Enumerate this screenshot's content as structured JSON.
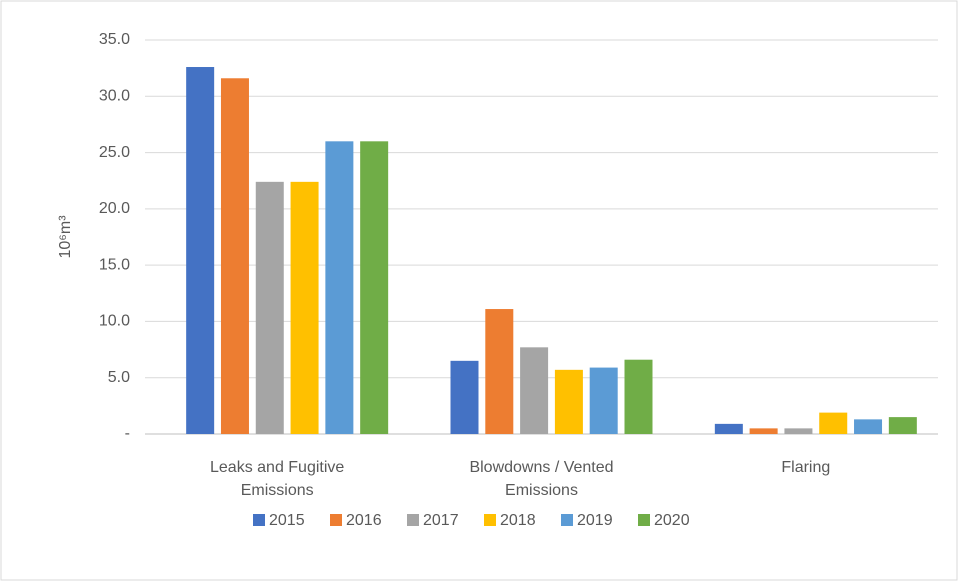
{
  "chart_data": {
    "type": "bar",
    "y_label": "10⁶m³",
    "categories": [
      "Leaks and Fugitive Emissions",
      "Blowdowns / Vented Emissions",
      "Flaring"
    ],
    "series": [
      {
        "name": "2015",
        "color": "#4472c4",
        "values": [
          32.6,
          6.5,
          0.9
        ]
      },
      {
        "name": "2016",
        "color": "#ed7d31",
        "values": [
          31.6,
          11.1,
          0.5
        ]
      },
      {
        "name": "2017",
        "color": "#a5a5a5",
        "values": [
          22.4,
          7.7,
          0.5
        ]
      },
      {
        "name": "2018",
        "color": "#ffc000",
        "values": [
          22.4,
          5.7,
          1.9
        ]
      },
      {
        "name": "2019",
        "color": "#5b9bd5",
        "values": [
          26.0,
          5.9,
          1.3
        ]
      },
      {
        "name": "2020",
        "color": "#70ad47",
        "values": [
          26.0,
          6.6,
          1.5
        ]
      }
    ],
    "ylim": [
      0,
      35
    ],
    "yticks": [
      {
        "value": 0,
        "label": "-"
      },
      {
        "value": 5,
        "label": "5.0"
      },
      {
        "value": 10,
        "label": "10.0"
      },
      {
        "value": 15,
        "label": "15.0"
      },
      {
        "value": 20,
        "label": "20.0"
      },
      {
        "value": 25,
        "label": "25.0"
      },
      {
        "value": 30,
        "label": "30.0"
      },
      {
        "value": 35,
        "label": "35.0"
      }
    ],
    "grid": true,
    "legend": "bottom"
  }
}
